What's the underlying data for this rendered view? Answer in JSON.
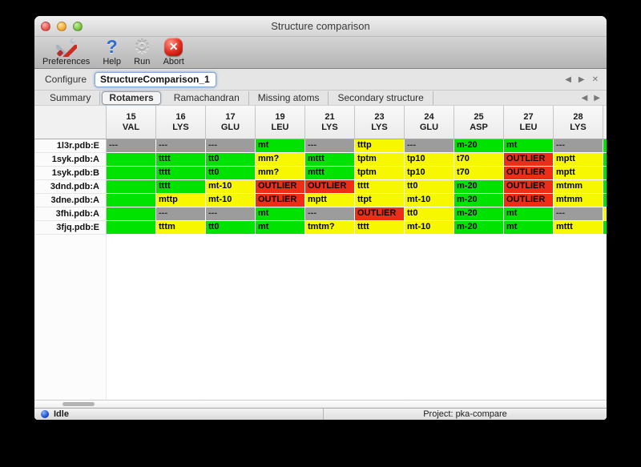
{
  "window": {
    "title": "Structure comparison"
  },
  "toolbar": {
    "items": [
      {
        "label": "Preferences",
        "icon": "tools-icon"
      },
      {
        "label": "Help",
        "icon": "question-icon"
      },
      {
        "label": "Run",
        "icon": "gear-icon"
      },
      {
        "label": "Abort",
        "icon": "abort-icon"
      }
    ]
  },
  "configure": {
    "label": "Configure",
    "value": "StructureComparison_1",
    "nav_prev": "◀",
    "nav_next": "▶",
    "nav_close": "✕"
  },
  "tabs": {
    "items": [
      {
        "label": "Summary",
        "active": false
      },
      {
        "label": "Rotamers",
        "active": true
      },
      {
        "label": "Ramachandran",
        "active": false
      },
      {
        "label": "Missing atoms",
        "active": false
      },
      {
        "label": "Secondary structure",
        "active": false
      }
    ],
    "nav_prev": "◀",
    "nav_next": "▶"
  },
  "rotamer_table": {
    "status_colors": {
      "green": "#00e300",
      "yellow": "#f7f700",
      "red": "#ee2d16",
      "gray": "#9c9c9c"
    },
    "columns": [
      {
        "number": "15",
        "residue": "VAL"
      },
      {
        "number": "16",
        "residue": "LYS"
      },
      {
        "number": "17",
        "residue": "GLU"
      },
      {
        "number": "19",
        "residue": "LEU"
      },
      {
        "number": "21",
        "residue": "LYS"
      },
      {
        "number": "23",
        "residue": "LYS"
      },
      {
        "number": "24",
        "residue": "GLU"
      },
      {
        "number": "25",
        "residue": "ASP"
      },
      {
        "number": "27",
        "residue": "LEU"
      },
      {
        "number": "28",
        "residue": "LYS"
      }
    ],
    "rows": [
      {
        "label": "1l3r.pdb:E",
        "cells": [
          {
            "value": "---",
            "status": "gray"
          },
          {
            "value": "---",
            "status": "gray"
          },
          {
            "value": "---",
            "status": "gray"
          },
          {
            "value": "mt",
            "status": "green"
          },
          {
            "value": "---",
            "status": "gray"
          },
          {
            "value": "tttp",
            "status": "yellow"
          },
          {
            "value": "---",
            "status": "gray"
          },
          {
            "value": "m-20",
            "status": "green"
          },
          {
            "value": "mt",
            "status": "green"
          },
          {
            "value": "---",
            "status": "gray"
          }
        ]
      },
      {
        "label": "1syk.pdb:A",
        "cells": [
          {
            "value": "",
            "status": "green"
          },
          {
            "value": "tttt",
            "status": "green"
          },
          {
            "value": "tt0",
            "status": "green"
          },
          {
            "value": "mm?",
            "status": "yellow"
          },
          {
            "value": "mttt",
            "status": "green"
          },
          {
            "value": "tptm",
            "status": "yellow"
          },
          {
            "value": "tp10",
            "status": "yellow"
          },
          {
            "value": "t70",
            "status": "yellow"
          },
          {
            "value": "OUTLIER",
            "status": "red"
          },
          {
            "value": "mptt",
            "status": "yellow"
          }
        ]
      },
      {
        "label": "1syk.pdb:B",
        "cells": [
          {
            "value": "",
            "status": "green"
          },
          {
            "value": "tttt",
            "status": "green"
          },
          {
            "value": "tt0",
            "status": "green"
          },
          {
            "value": "mm?",
            "status": "yellow"
          },
          {
            "value": "mttt",
            "status": "green"
          },
          {
            "value": "tptm",
            "status": "yellow"
          },
          {
            "value": "tp10",
            "status": "yellow"
          },
          {
            "value": "t70",
            "status": "yellow"
          },
          {
            "value": "OUTLIER",
            "status": "red"
          },
          {
            "value": "mptt",
            "status": "yellow"
          }
        ]
      },
      {
        "label": "3dnd.pdb:A",
        "cells": [
          {
            "value": "",
            "status": "green"
          },
          {
            "value": "tttt",
            "status": "green"
          },
          {
            "value": "mt-10",
            "status": "yellow"
          },
          {
            "value": "OUTLIER",
            "status": "red"
          },
          {
            "value": "OUTLIER",
            "status": "red"
          },
          {
            "value": "tttt",
            "status": "yellow"
          },
          {
            "value": "tt0",
            "status": "yellow"
          },
          {
            "value": "m-20",
            "status": "green"
          },
          {
            "value": "OUTLIER",
            "status": "red"
          },
          {
            "value": "mtmm",
            "status": "yellow"
          }
        ]
      },
      {
        "label": "3dne.pdb:A",
        "cells": [
          {
            "value": "",
            "status": "green"
          },
          {
            "value": "mttp",
            "status": "yellow"
          },
          {
            "value": "mt-10",
            "status": "yellow"
          },
          {
            "value": "OUTLIER",
            "status": "red"
          },
          {
            "value": "mptt",
            "status": "yellow"
          },
          {
            "value": "ttpt",
            "status": "yellow"
          },
          {
            "value": "mt-10",
            "status": "yellow"
          },
          {
            "value": "m-20",
            "status": "green"
          },
          {
            "value": "OUTLIER",
            "status": "red"
          },
          {
            "value": "mtmm",
            "status": "yellow"
          }
        ]
      },
      {
        "label": "3fhi.pdb:A",
        "cells": [
          {
            "value": "",
            "status": "green"
          },
          {
            "value": "---",
            "status": "gray"
          },
          {
            "value": "---",
            "status": "gray"
          },
          {
            "value": "mt",
            "status": "green"
          },
          {
            "value": "---",
            "status": "gray"
          },
          {
            "value": "OUTLIER",
            "status": "red"
          },
          {
            "value": "tt0",
            "status": "yellow"
          },
          {
            "value": "m-20",
            "status": "green"
          },
          {
            "value": "mt",
            "status": "green"
          },
          {
            "value": "---",
            "status": "gray"
          }
        ]
      },
      {
        "label": "3fjq.pdb:E",
        "cells": [
          {
            "value": "",
            "status": "green"
          },
          {
            "value": "tttm",
            "status": "yellow"
          },
          {
            "value": "tt0",
            "status": "green"
          },
          {
            "value": "mt",
            "status": "green"
          },
          {
            "value": "tmtm?",
            "status": "yellow"
          },
          {
            "value": "tttt",
            "status": "yellow"
          },
          {
            "value": "mt-10",
            "status": "yellow"
          },
          {
            "value": "m-20",
            "status": "green"
          },
          {
            "value": "mt",
            "status": "green"
          },
          {
            "value": "mttt",
            "status": "yellow"
          }
        ]
      }
    ],
    "partial_column": [
      "green",
      "green",
      "green",
      "green",
      "green",
      "yellow",
      "green"
    ]
  },
  "statusbar": {
    "status": "Idle",
    "project": "Project: pka-compare"
  }
}
